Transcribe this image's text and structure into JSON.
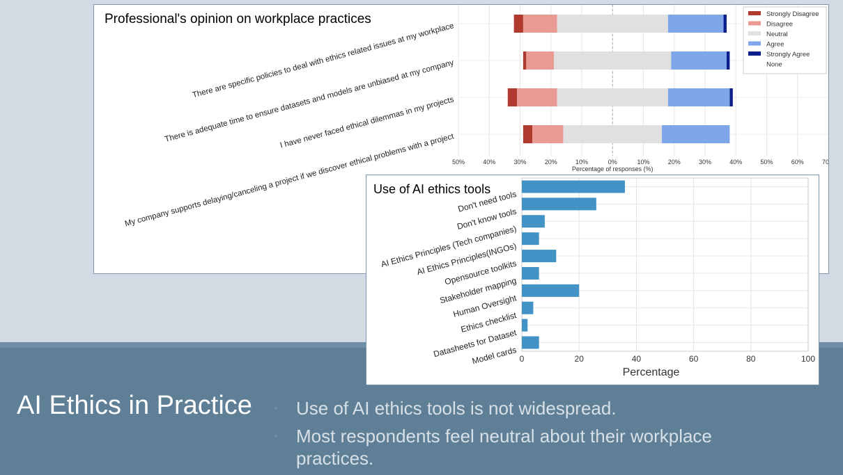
{
  "slide": {
    "title": "AI Ethics in Practice",
    "bullets": [
      "Use of AI ethics tools is not widespread.",
      "Most respondents feel neutral about their workplace practices."
    ],
    "bullet_glyph": "◦"
  },
  "chart_data": [
    {
      "type": "bar",
      "orientation": "horizontal-diverging-stacked",
      "title": "Professional's opinion on workplace practices",
      "xlabel": "Percentage of responses (%)",
      "ylabel": "",
      "xticks": [
        "50%",
        "40%",
        "30%",
        "20%",
        "10%",
        "0%",
        "10%",
        "20%",
        "30%",
        "40%",
        "50%",
        "60%",
        "70%"
      ],
      "xlim": [
        -50,
        70
      ],
      "categories": [
        "There are specific policies to deal with ethics related issues at my workplace",
        "There is adequate time to ensure datasets and models are unbiased at my company",
        "I have never faced ethical dilemmas in my projects",
        "My company supports delaying/canceling a project if we discover ethical problems with a project"
      ],
      "series": [
        {
          "name": "Strongly Disagree",
          "color": "#b03a2e",
          "values": [
            3,
            1,
            3,
            3
          ]
        },
        {
          "name": "Disagree",
          "color": "#e99a93",
          "values": [
            11,
            9,
            13,
            10
          ]
        },
        {
          "name": "Neutral",
          "color": "#e0e0e0",
          "values": [
            36,
            38,
            36,
            32
          ]
        },
        {
          "name": "Agree",
          "color": "#7fa6e8",
          "values": [
            18,
            18,
            20,
            22
          ]
        },
        {
          "name": "Strongly Agree",
          "color": "#0d1f8c",
          "values": [
            1,
            1,
            1,
            0
          ]
        },
        {
          "name": "None",
          "color": "none",
          "values": [
            0,
            0,
            0,
            0
          ]
        }
      ],
      "legend_position": "top-right",
      "grid": true
    },
    {
      "type": "bar",
      "orientation": "horizontal",
      "title": "Use of AI ethics tools",
      "xlabel": "Percentage",
      "ylabel": "",
      "xlim": [
        0,
        100
      ],
      "xticks": [
        "0",
        "20",
        "40",
        "60",
        "80",
        "100"
      ],
      "color": "#4292c6",
      "categories": [
        "Don't need tools",
        "Don't know tools",
        "AI Ethics Principles (Tech companies)",
        "AI Ethics Principles(INGOs)",
        "Opensource toolkits",
        "Stakeholder mapping",
        "Human Oversight",
        "Ethics checklist",
        "Datasheets for Dataset",
        "Model cards"
      ],
      "values": [
        36,
        26,
        8,
        6,
        12,
        6,
        20,
        4,
        2,
        6
      ],
      "grid": true
    }
  ]
}
